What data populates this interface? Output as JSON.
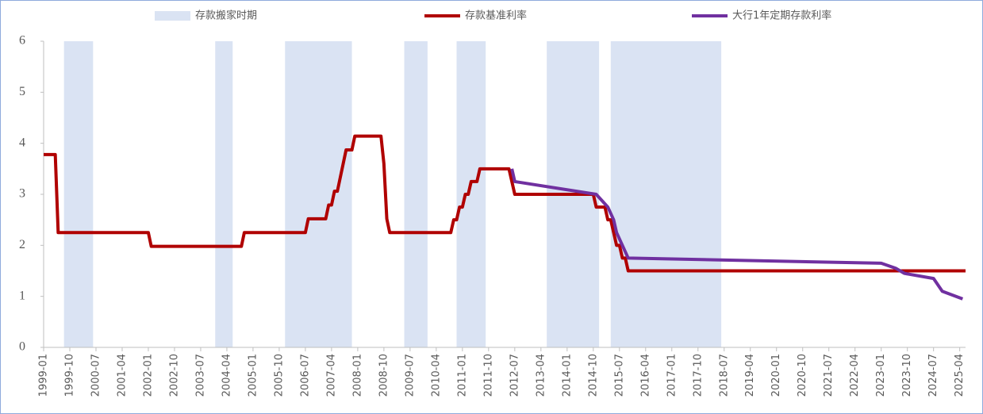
{
  "chart_data": {
    "type": "line",
    "bands": {
      "name": "存款搬家时期",
      "color": "#dae3f3",
      "ranges": [
        [
          "1999-08",
          "2000-06"
        ],
        [
          "2003-12",
          "2004-06"
        ],
        [
          "2005-12",
          "2007-11"
        ],
        [
          "2009-05",
          "2010-01"
        ],
        [
          "2010-11",
          "2011-09"
        ],
        [
          "2013-06",
          "2014-12"
        ],
        [
          "2015-04",
          "2018-06"
        ]
      ]
    },
    "series": [
      {
        "name": "存款基准利率",
        "color": "#b00000",
        "x": [
          "1999-01",
          "1999-05",
          "1999-06",
          "2002-01",
          "2002-02",
          "2004-09",
          "2004-10",
          "2006-07",
          "2006-08",
          "2007-02",
          "2007-03",
          "2007-04",
          "2007-05",
          "2007-06",
          "2007-07",
          "2007-08",
          "2007-09",
          "2007-11",
          "2007-12",
          "2008-09",
          "2008-10",
          "2008-11",
          "2008-12",
          "2010-09",
          "2010-10",
          "2010-11",
          "2010-12",
          "2011-01",
          "2011-02",
          "2011-03",
          "2011-04",
          "2011-06",
          "2011-07",
          "2012-05",
          "2012-06",
          "2012-07",
          "2014-10",
          "2014-11",
          "2015-02",
          "2015-03",
          "2015-04",
          "2015-05",
          "2015-06",
          "2015-07",
          "2015-08",
          "2015-09",
          "2015-10",
          "2025-06"
        ],
        "values": [
          3.78,
          3.78,
          2.25,
          2.25,
          1.98,
          1.98,
          2.25,
          2.25,
          2.52,
          2.52,
          2.79,
          2.79,
          3.06,
          3.06,
          3.33,
          3.6,
          3.87,
          3.87,
          4.14,
          4.14,
          3.6,
          2.52,
          2.25,
          2.25,
          2.5,
          2.5,
          2.75,
          2.75,
          3.0,
          3.0,
          3.25,
          3.25,
          3.5,
          3.5,
          3.25,
          3.0,
          3.0,
          2.75,
          2.75,
          2.5,
          2.5,
          2.25,
          2.0,
          2.0,
          1.75,
          1.75,
          1.5,
          1.5
        ]
      },
      {
        "name": "大行1年定期存款利率",
        "color": "#7030a0",
        "x": [
          "2012-06",
          "2012-07",
          "2014-11",
          "2015-03",
          "2015-05",
          "2015-06",
          "2015-08",
          "2015-10",
          "2023-01",
          "2023-06",
          "2023-09",
          "2024-07",
          "2024-10",
          "2025-05"
        ],
        "values": [
          3.5,
          3.25,
          3.0,
          2.75,
          2.5,
          2.25,
          2.0,
          1.75,
          1.65,
          1.55,
          1.45,
          1.35,
          1.1,
          0.95
        ]
      }
    ],
    "xlim": [
      "1999-01",
      "2025-06"
    ],
    "xticks": [
      "1999-01",
      "1999-10",
      "2000-07",
      "2001-04",
      "2002-01",
      "2002-10",
      "2003-07",
      "2004-04",
      "2005-01",
      "2005-10",
      "2006-07",
      "2007-04",
      "2008-01",
      "2008-10",
      "2009-07",
      "2010-04",
      "2011-01",
      "2011-10",
      "2012-07",
      "2013-04",
      "2014-01",
      "2014-10",
      "2015-07",
      "2016-04",
      "2017-01",
      "2017-10",
      "2018-07",
      "2019-04",
      "2020-01",
      "2020-10",
      "2021-07",
      "2022-04",
      "2023-01",
      "2023-10",
      "2024-07",
      "2025-04"
    ],
    "ylim": [
      0,
      6
    ],
    "yticks": [
      0,
      1,
      2,
      3,
      4,
      5,
      6
    ],
    "grid": false,
    "legend": "top"
  }
}
